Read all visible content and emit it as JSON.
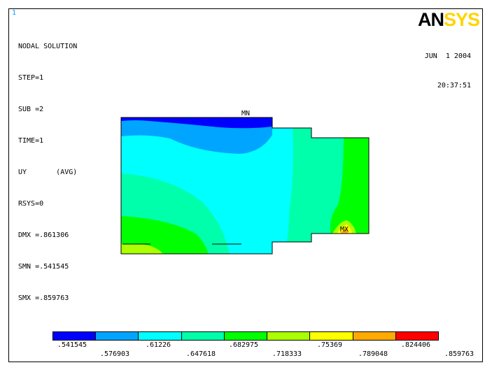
{
  "window_number": "1",
  "logo": {
    "an": "AN",
    "sys": "SYS"
  },
  "info": {
    "title": "NODAL SOLUTION",
    "step": "STEP=1",
    "sub": "SUB =2",
    "time": "TIME=1",
    "result": "UY       (AVG)",
    "rsys": "RSYS=0",
    "dmx": "DMX =.861306",
    "smn": "SMN =.541545",
    "smx": "SMX =.859763"
  },
  "date": "JUN  1 2004",
  "time_of_day": "20:37:51",
  "labels": {
    "mn": "MN",
    "mx": "MX"
  },
  "colors": {
    "c1": "#0000ff",
    "c2": "#00a5ff",
    "c3": "#00ffff",
    "c4": "#00ffaa",
    "c5": "#00ff00",
    "c6": "#aaff00",
    "c7": "#ffff00",
    "c8": "#ffaa00",
    "c9": "#ff0000"
  },
  "legend": {
    "upper_ticks": [
      ".541545",
      ".61226",
      ".682975",
      ".75369",
      ".824406"
    ],
    "lower_ticks": [
      ".576903",
      ".647618",
      ".718333",
      ".789048",
      ".859763"
    ]
  }
}
